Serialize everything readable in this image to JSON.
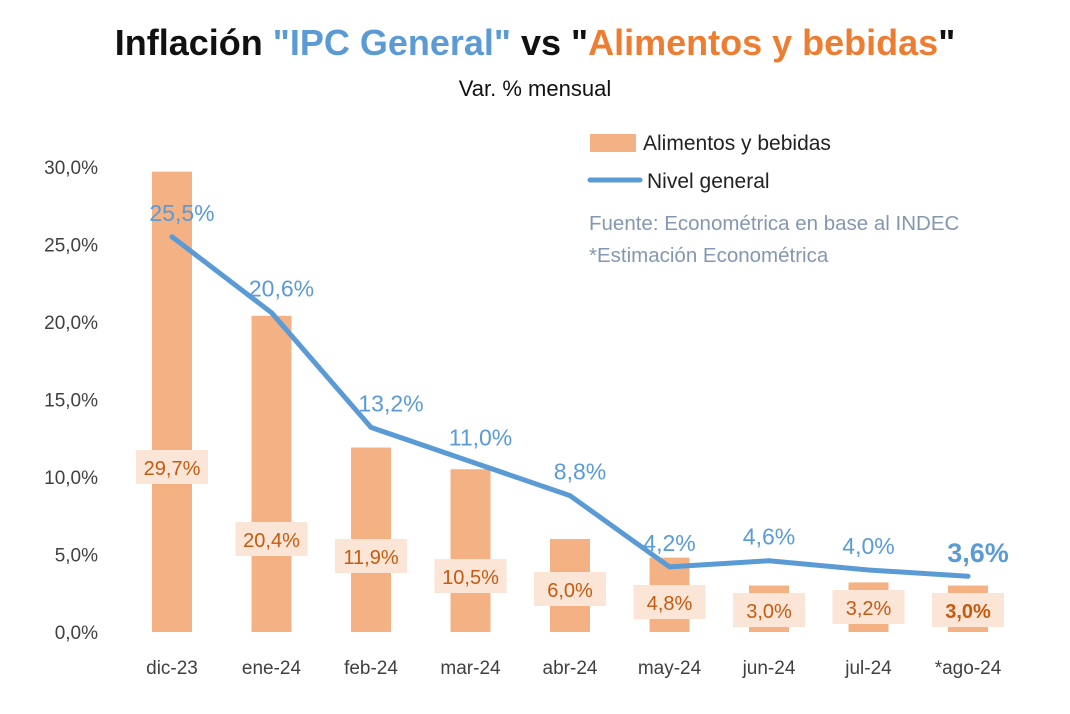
{
  "title": {
    "part1": "Inflación ",
    "part2": "\"IPC General\"",
    "part3": " vs \"",
    "part4": "Alimentos y bebidas",
    "part5": "\""
  },
  "subtitle": "Var. % mensual",
  "legend": {
    "bar_label": "Alimentos y bebidas",
    "line_label": "Nivel general"
  },
  "notes": {
    "source": "Fuente: Econométrica en base al INDEC",
    "estimate": "*Estimación Econométrica"
  },
  "colors": {
    "bar": "#f4b183",
    "line": "#5b9bd5",
    "bar_label_text": "#c55a11",
    "bar_label_bg": "#fbe5d6",
    "line_label_text": "#5b9bd5",
    "note_text": "#8497b0",
    "axis_text": "#404040"
  },
  "chart_data": {
    "type": "bar",
    "categories": [
      "dic-23",
      "ene-24",
      "feb-24",
      "mar-24",
      "abr-24",
      "may-24",
      "jun-24",
      "jul-24",
      "*ago-24"
    ],
    "series": [
      {
        "name": "Alimentos y bebidas",
        "kind": "bar",
        "values": [
          29.7,
          20.4,
          11.9,
          10.5,
          6.0,
          4.8,
          3.0,
          3.2,
          3.0
        ],
        "labels": [
          "29,7%",
          "20,4%",
          "11,9%",
          "10,5%",
          "6,0%",
          "4,8%",
          "3,0%",
          "3,2%",
          "3,0%"
        ]
      },
      {
        "name": "Nivel general",
        "kind": "line",
        "values": [
          25.5,
          20.6,
          13.2,
          11.0,
          8.8,
          4.2,
          4.6,
          4.0,
          3.6
        ],
        "labels": [
          "25,5%",
          "20,6%",
          "13,2%",
          "11,0%",
          "8,8%",
          "4,2%",
          "4,6%",
          "4,0%",
          "3,6%"
        ]
      }
    ],
    "yticks": [
      0,
      5,
      10,
      15,
      20,
      25,
      30
    ],
    "ytick_labels": [
      "0,0%",
      "5,0%",
      "10,0%",
      "15,0%",
      "20,0%",
      "25,0%",
      "30,0%"
    ],
    "ylim": [
      0,
      30
    ],
    "grid": false,
    "legend_position": "top-right"
  }
}
